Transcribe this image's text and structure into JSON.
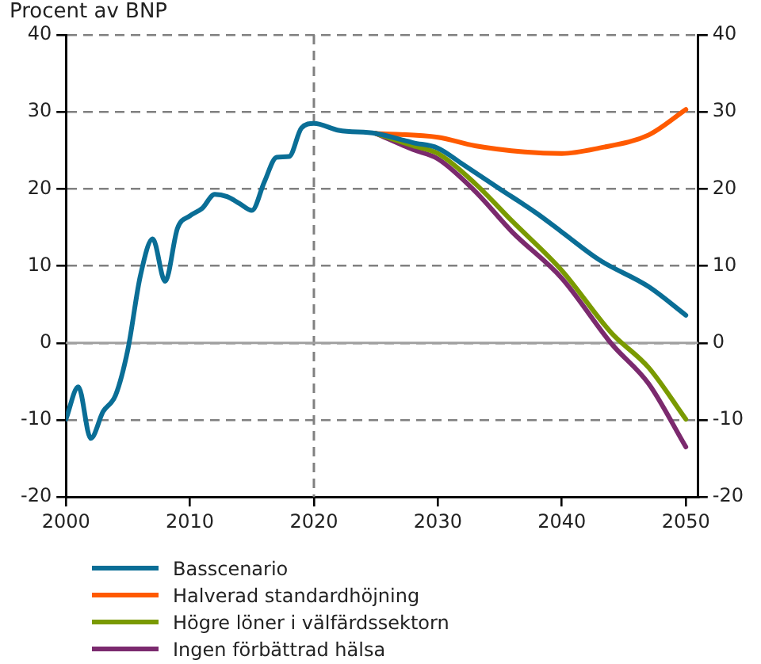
{
  "chart_data": {
    "type": "line",
    "title": "Procent av BNP",
    "xlim": [
      2000,
      2051
    ],
    "xticks": [
      2000,
      2010,
      2020,
      2030,
      2040,
      2050
    ],
    "ylim": [
      -20,
      40
    ],
    "yticks": [
      -20,
      -10,
      0,
      10,
      20,
      30,
      40
    ],
    "y2lim": [
      -20,
      40
    ],
    "y2ticks": [
      -20,
      -10,
      0,
      10,
      20,
      30,
      40
    ],
    "grid": "y",
    "legend": "bottom",
    "line_style": "solid",
    "marker": "none",
    "ref_lines": [
      {
        "axis": "x",
        "value": 2020,
        "color": "#808080",
        "line_style": "dashed"
      },
      {
        "axis": "y",
        "value": 0,
        "color": "#a0a0a0",
        "line_style": "solid"
      }
    ],
    "series": [
      {
        "name": "Basscenario",
        "color": "#0a6e96",
        "x": [
          2000,
          2001,
          2002,
          2003,
          2004,
          2005,
          2006,
          2007,
          2008,
          2009,
          2010,
          2011,
          2012,
          2013,
          2014,
          2015,
          2016,
          2017,
          2018,
          2019,
          2020,
          2022,
          2025,
          2028,
          2030,
          2032,
          2035,
          2038,
          2040,
          2043,
          2047,
          2050
        ],
        "values": [
          -9.9,
          -5.7,
          -12.4,
          -8.9,
          -6.8,
          -0.8,
          8.7,
          13.5,
          8.0,
          14.9,
          16.5,
          17.5,
          19.3,
          19.0,
          18.1,
          17.2,
          20.9,
          24.1,
          24.2,
          27.9,
          28.5,
          27.6,
          27.2,
          26.0,
          25.3,
          23.2,
          20.0,
          16.8,
          14.4,
          10.8,
          7.3,
          3.6
        ]
      },
      {
        "name": "Halverad standardhöjning",
        "color": "#ff5a00",
        "x": [
          2025,
          2030,
          2033,
          2037,
          2040,
          2043,
          2047,
          2050
        ],
        "values": [
          27.2,
          26.7,
          25.6,
          24.8,
          24.6,
          25.3,
          27.0,
          30.3
        ]
      },
      {
        "name": "Högre löner i välfärdssektorn",
        "color": "#7a9a01",
        "x": [
          2025,
          2028,
          2030,
          2033,
          2036,
          2040,
          2044,
          2047,
          2050
        ],
        "values": [
          27.2,
          25.6,
          24.6,
          20.7,
          15.8,
          9.4,
          1.3,
          -3.2,
          -9.9
        ]
      },
      {
        "name": "Ingen förbättrad hälsa",
        "color": "#7b2a6e",
        "x": [
          2025,
          2028,
          2030,
          2033,
          2036,
          2040,
          2044,
          2047,
          2050
        ],
        "values": [
          27.2,
          25.1,
          23.9,
          19.7,
          14.4,
          8.4,
          -0.1,
          -5.3,
          -13.5
        ]
      }
    ]
  }
}
